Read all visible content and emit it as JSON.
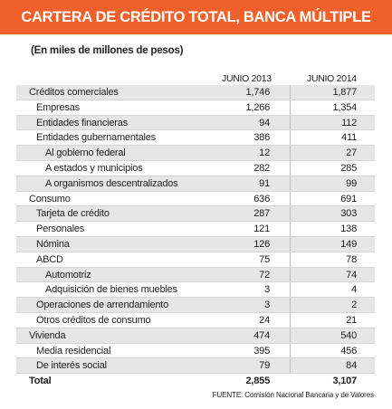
{
  "title": "CARTERA DE CRÉDITO TOTAL, BANCA MÚLTIPLE",
  "subtitle": "(En miles de millones de pesos)",
  "columns": [
    "JUNIO 2013",
    "JUNIO 2014"
  ],
  "rows": [
    {
      "label": "Créditos comerciales",
      "v2013": "1,746",
      "v2014": "1,877"
    },
    {
      "label": "Empresas",
      "v2013": "1,266",
      "v2014": "1,354"
    },
    {
      "label": "Entidades financieras",
      "v2013": "94",
      "v2014": "112"
    },
    {
      "label": "Entidades gubernamentales",
      "v2013": "386",
      "v2014": "411"
    },
    {
      "label": "Al gobierno federal",
      "v2013": "12",
      "v2014": "27"
    },
    {
      "label": "A estados y municipios",
      "v2013": "282",
      "v2014": "285"
    },
    {
      "label": "A organismos descentralizados",
      "v2013": "91",
      "v2014": "99"
    },
    {
      "label": "Consumo",
      "v2013": "636",
      "v2014": "691"
    },
    {
      "label": "Tarjeta de crédito",
      "v2013": "287",
      "v2014": "303"
    },
    {
      "label": "Personales",
      "v2013": "121",
      "v2014": "138"
    },
    {
      "label": "Nómina",
      "v2013": "126",
      "v2014": "149"
    },
    {
      "label": "ABCD",
      "v2013": "75",
      "v2014": "78"
    },
    {
      "label": "Automotriz",
      "v2013": "72",
      "v2014": "74"
    },
    {
      "label": "Adquisición de bienes muebles",
      "v2013": "3",
      "v2014": "4"
    },
    {
      "label": "Operaciones de arrendamiento",
      "v2013": "3",
      "v2014": "2"
    },
    {
      "label": "Otros créditos de consumo",
      "v2013": "24",
      "v2014": "21"
    },
    {
      "label": "Vivienda",
      "v2013": "474",
      "v2014": "540"
    },
    {
      "label": "Media residencial",
      "v2013": "395",
      "v2014": "456"
    },
    {
      "label": "De interés social",
      "v2013": "79",
      "v2014": "84"
    }
  ],
  "total": {
    "label": "Total",
    "v2013": "2,855",
    "v2014": "3,107"
  },
  "source": "FUENTE: Comisión Nacional Bancaria y de Valores"
}
